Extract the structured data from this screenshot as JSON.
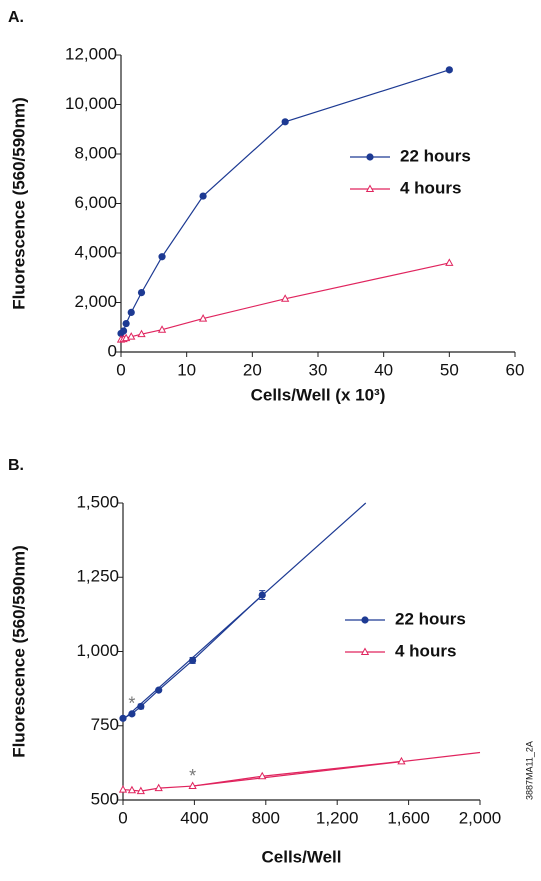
{
  "chart_data": [
    {
      "type": "line",
      "panel": "A.",
      "xlabel": "Cells/Well (x 10³)",
      "ylabel": "Fluorescence (560/590nm)",
      "xlim": [
        0,
        60
      ],
      "xticks": [
        0,
        10,
        20,
        30,
        40,
        50,
        60
      ],
      "ylim": [
        0,
        12000
      ],
      "yticks": [
        0,
        {
          "value": 2000,
          "label": "2,000"
        },
        {
          "value": 4000,
          "label": "4,000"
        },
        {
          "value": 6000,
          "label": "6,000"
        },
        {
          "value": 8000,
          "label": "8,000"
        },
        {
          "value": 10000,
          "label": "10,000"
        },
        {
          "value": 12000,
          "label": "12,000"
        }
      ],
      "x": [
        0,
        0.39,
        0.78,
        1.56,
        3.125,
        6.25,
        12.5,
        25,
        50
      ],
      "legend": "right",
      "series": [
        {
          "name": "22 hours",
          "color": "#1d3a93",
          "marker": "circle",
          "values": [
            750,
            850,
            1150,
            1600,
            2400,
            3850,
            6300,
            9300,
            11400
          ]
        },
        {
          "name": "4 hours",
          "color": "#e0245e",
          "marker": "triangle",
          "values": [
            500,
            520,
            560,
            620,
            720,
            900,
            1350,
            2150,
            3600
          ]
        }
      ]
    },
    {
      "type": "line",
      "panel": "B.",
      "xlabel": "Cells/Well",
      "ylabel": "Fluorescence (560/590nm)",
      "xlim": [
        0,
        2000
      ],
      "xticks": [
        0,
        400,
        800,
        {
          "value": 1200,
          "label": "1,200"
        },
        {
          "value": 1600,
          "label": "1,600"
        },
        {
          "value": 2000,
          "label": "2,000"
        }
      ],
      "ylim": [
        500,
        1500
      ],
      "yticks": [
        500,
        750,
        {
          "value": 1000,
          "label": "1,000"
        },
        {
          "value": 1250,
          "label": "1,250"
        },
        {
          "value": 1500,
          "label": "1,500"
        }
      ],
      "legend": "right",
      "series": [
        {
          "name": "22 hours",
          "color": "#1d3a93",
          "marker": "circle",
          "x": [
            0,
            50,
            100,
            200,
            390,
            780
          ],
          "values": [
            775,
            790,
            815,
            870,
            970,
            1190
          ],
          "errors": [
            0,
            0,
            8,
            0,
            10,
            15
          ],
          "fit": {
            "x": [
              0,
              1360
            ],
            "values": [
              770,
              1500
            ]
          }
        },
        {
          "name": "4 hours",
          "color": "#e0245e",
          "marker": "triangle",
          "x": [
            0,
            50,
            100,
            200,
            390,
            780,
            1560
          ],
          "values": [
            535,
            533,
            530,
            540,
            547,
            580,
            630
          ],
          "fit": {
            "x": [
              390,
              2000
            ],
            "values": [
              547,
              660
            ]
          }
        }
      ],
      "annotations": [
        {
          "text": "*",
          "series": 0,
          "point": 1
        },
        {
          "text": "*",
          "series": 1,
          "point": 4
        }
      ]
    }
  ],
  "figure_id": "3887MA11_2A"
}
